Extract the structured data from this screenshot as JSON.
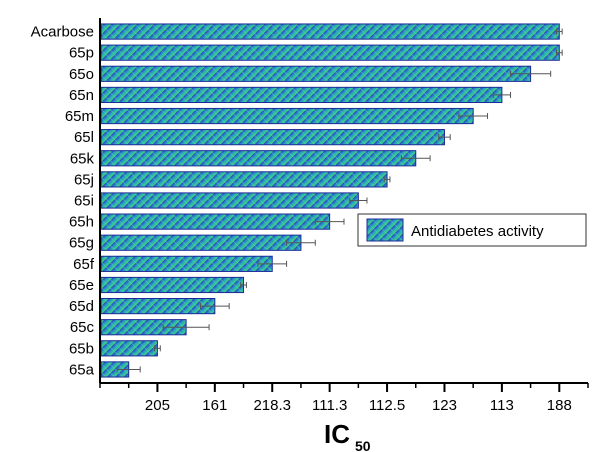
{
  "chart_data": {
    "type": "bar",
    "orientation": "horizontal",
    "categories": [
      "Acarbose",
      "65p",
      "65o",
      "65n",
      "65m",
      "65l",
      "65k",
      "65j",
      "65i",
      "65h",
      "65g",
      "65f",
      "65e",
      "65d",
      "65c",
      "65b",
      "65a"
    ],
    "series": [
      {
        "name": "Antidiabetes activity",
        "values": [
          16,
          16,
          15,
          14,
          13,
          12,
          11,
          10,
          9,
          8,
          7,
          6,
          5,
          4,
          3,
          2,
          1
        ],
        "errors": [
          0.1,
          0.1,
          0.7,
          0.3,
          0.5,
          0.2,
          0.5,
          0.1,
          0.3,
          0.5,
          0.5,
          0.5,
          0.1,
          0.5,
          0.8,
          0.1,
          0.4
        ]
      }
    ],
    "x_tick_labels": [
      "205",
      "161",
      "218.3",
      "111.3",
      "112.5",
      "123",
      "113",
      "188"
    ],
    "x_tick_values": [
      2,
      4,
      6,
      8,
      10,
      12,
      14,
      16
    ],
    "xlim": [
      0,
      17
    ],
    "xlabel": "IC",
    "xlabel_subscript": "50",
    "legend_position": "right",
    "grid": false,
    "colors": {
      "bar_fill": "#2e9fb8",
      "bar_stripe_dark": "#2b3fc9",
      "bar_stripe_light": "#3fd67a",
      "axis": "#000000",
      "error_bar": "#555555"
    }
  }
}
